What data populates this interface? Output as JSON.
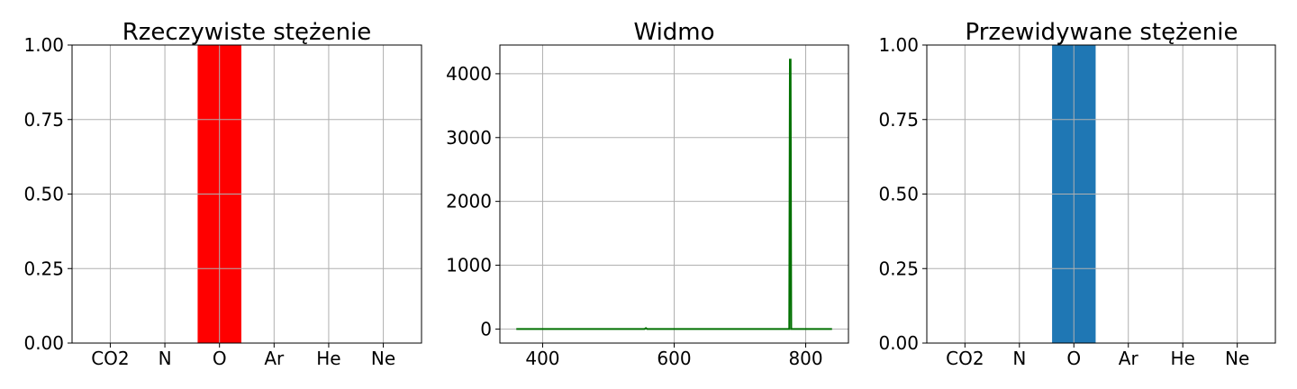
{
  "chart_data": [
    {
      "type": "bar",
      "title": "Rzeczywiste stężenie",
      "categories": [
        "CO2",
        "N",
        "O",
        "Ar",
        "He",
        "Ne"
      ],
      "values": [
        0,
        0,
        1,
        0,
        0,
        0
      ],
      "ylim": [
        0,
        1
      ],
      "yticks": [
        0,
        0.25,
        0.5,
        0.75,
        1.0
      ],
      "ytick_labels": [
        "0.00",
        "0.25",
        "0.50",
        "0.75",
        "1.00"
      ],
      "color": "#ff0000",
      "grid": true
    },
    {
      "type": "line",
      "title": "Widmo",
      "x": [
        360,
        555,
        557,
        559,
        775,
        776,
        777,
        778,
        840
      ],
      "y": [
        0,
        0,
        15,
        0,
        0,
        4220,
        4220,
        0,
        0
      ],
      "xlim": [
        335,
        865
      ],
      "ylim": [
        -220,
        4450
      ],
      "xticks": [
        400,
        600,
        800
      ],
      "xtick_labels": [
        "400",
        "600",
        "800"
      ],
      "yticks": [
        0,
        1000,
        2000,
        3000,
        4000
      ],
      "ytick_labels": [
        "0",
        "1000",
        "2000",
        "3000",
        "4000"
      ],
      "color": "#007000",
      "grid": true
    },
    {
      "type": "bar",
      "title": "Przewidywane stężenie",
      "categories": [
        "CO2",
        "N",
        "O",
        "Ar",
        "He",
        "Ne"
      ],
      "values": [
        0,
        0,
        1,
        0,
        0,
        0
      ],
      "ylim": [
        0,
        1
      ],
      "yticks": [
        0,
        0.25,
        0.5,
        0.75,
        1.0
      ],
      "ytick_labels": [
        "0.00",
        "0.25",
        "0.50",
        "0.75",
        "1.00"
      ],
      "color": "#1f77b4",
      "grid": true
    }
  ]
}
